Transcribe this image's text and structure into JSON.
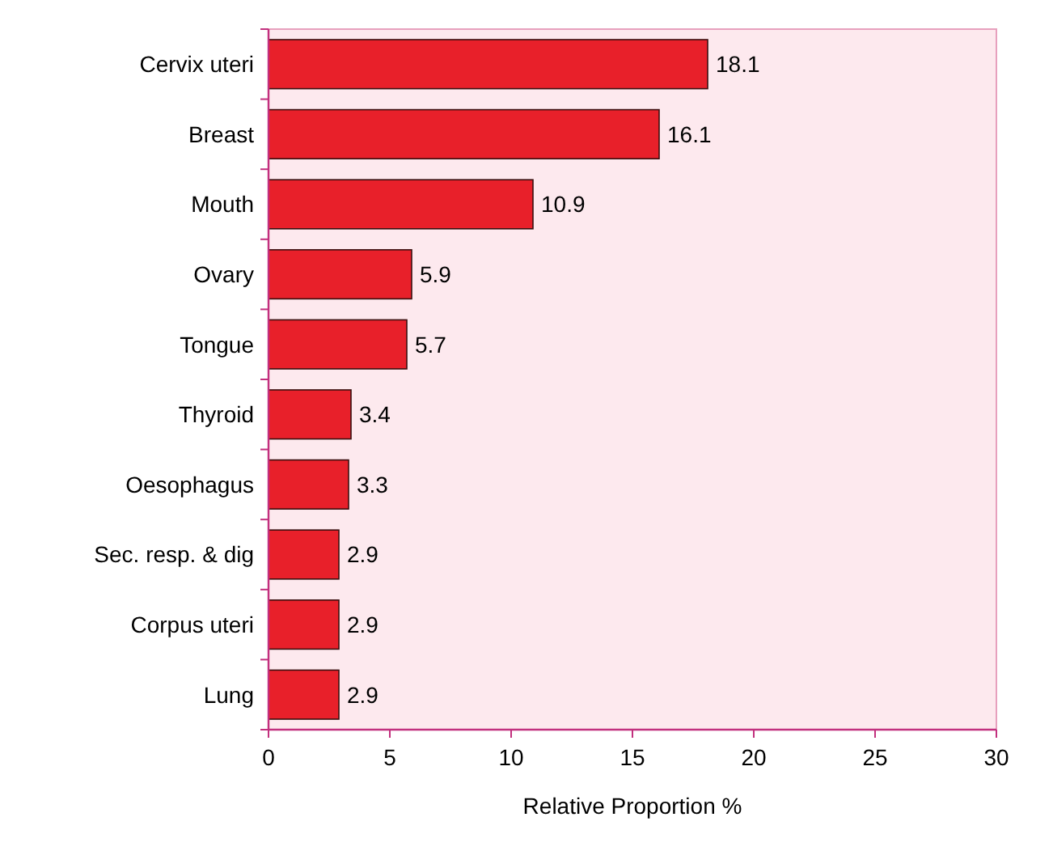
{
  "chart_data": {
    "type": "bar",
    "orientation": "horizontal",
    "xlabel": "Relative Proportion %",
    "categories": [
      "Cervix uteri",
      "Breast",
      "Mouth",
      "Ovary",
      "Tongue",
      "Thyroid",
      "Oesophagus",
      "Sec. resp. & dig",
      "Corpus uteri",
      "Lung"
    ],
    "values": [
      18.1,
      16.1,
      10.9,
      5.9,
      5.7,
      3.4,
      3.3,
      2.9,
      2.9,
      2.9
    ],
    "color": "#e8202a",
    "xlim": [
      0,
      30
    ],
    "xticks": [
      0,
      5,
      10,
      15,
      20,
      25,
      30
    ],
    "grid": false,
    "data_labels": true
  }
}
